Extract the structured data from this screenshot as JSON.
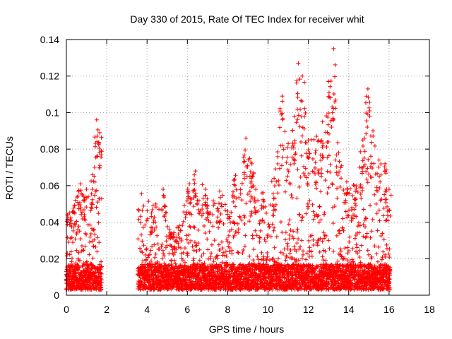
{
  "chart_data": {
    "type": "scatter",
    "title": "Day 330 of 2015, Rate Of TEC Index for receiver whit",
    "xlabel": "GPS time / hours",
    "ylabel": "ROTI / TECUs",
    "xlim": [
      0,
      18
    ],
    "ylim": [
      0,
      0.14
    ],
    "xticks": [
      "0",
      "2",
      "4",
      "6",
      "8",
      "10",
      "12",
      "14",
      "16",
      "18"
    ],
    "yticks": [
      "0",
      "0.02",
      "0.04",
      "0.06",
      "0.08",
      "0.1",
      "0.12",
      "0.14"
    ],
    "grid": true,
    "marker": "+",
    "color": "#ff0000",
    "coverage": [
      [
        0.0,
        1.75
      ],
      [
        3.55,
        16.05
      ]
    ],
    "peaks": [
      {
        "x": 0.15,
        "y": 0.045
      },
      {
        "x": 0.45,
        "y": 0.052
      },
      {
        "x": 0.7,
        "y": 0.061
      },
      {
        "x": 1.0,
        "y": 0.058
      },
      {
        "x": 1.3,
        "y": 0.066
      },
      {
        "x": 1.5,
        "y": 0.096
      },
      {
        "x": 1.65,
        "y": 0.089
      },
      {
        "x": 4.3,
        "y": 0.049
      },
      {
        "x": 4.8,
        "y": 0.058
      },
      {
        "x": 5.1,
        "y": 0.036
      },
      {
        "x": 5.6,
        "y": 0.038
      },
      {
        "x": 6.1,
        "y": 0.061
      },
      {
        "x": 6.4,
        "y": 0.068
      },
      {
        "x": 6.9,
        "y": 0.058
      },
      {
        "x": 7.6,
        "y": 0.057
      },
      {
        "x": 8.3,
        "y": 0.063
      },
      {
        "x": 8.9,
        "y": 0.086
      },
      {
        "x": 9.2,
        "y": 0.072
      },
      {
        "x": 9.7,
        "y": 0.056
      },
      {
        "x": 10.3,
        "y": 0.064
      },
      {
        "x": 10.7,
        "y": 0.109
      },
      {
        "x": 11.0,
        "y": 0.083
      },
      {
        "x": 11.3,
        "y": 0.098
      },
      {
        "x": 11.5,
        "y": 0.127
      },
      {
        "x": 11.7,
        "y": 0.12
      },
      {
        "x": 12.0,
        "y": 0.085
      },
      {
        "x": 12.4,
        "y": 0.087
      },
      {
        "x": 12.7,
        "y": 0.095
      },
      {
        "x": 13.0,
        "y": 0.117
      },
      {
        "x": 13.25,
        "y": 0.135
      },
      {
        "x": 13.5,
        "y": 0.078
      },
      {
        "x": 13.9,
        "y": 0.062
      },
      {
        "x": 14.3,
        "y": 0.06
      },
      {
        "x": 14.7,
        "y": 0.085
      },
      {
        "x": 14.95,
        "y": 0.113
      },
      {
        "x": 15.2,
        "y": 0.09
      },
      {
        "x": 15.5,
        "y": 0.074
      },
      {
        "x": 15.8,
        "y": 0.072
      },
      {
        "x": 16.0,
        "y": 0.058
      }
    ]
  }
}
